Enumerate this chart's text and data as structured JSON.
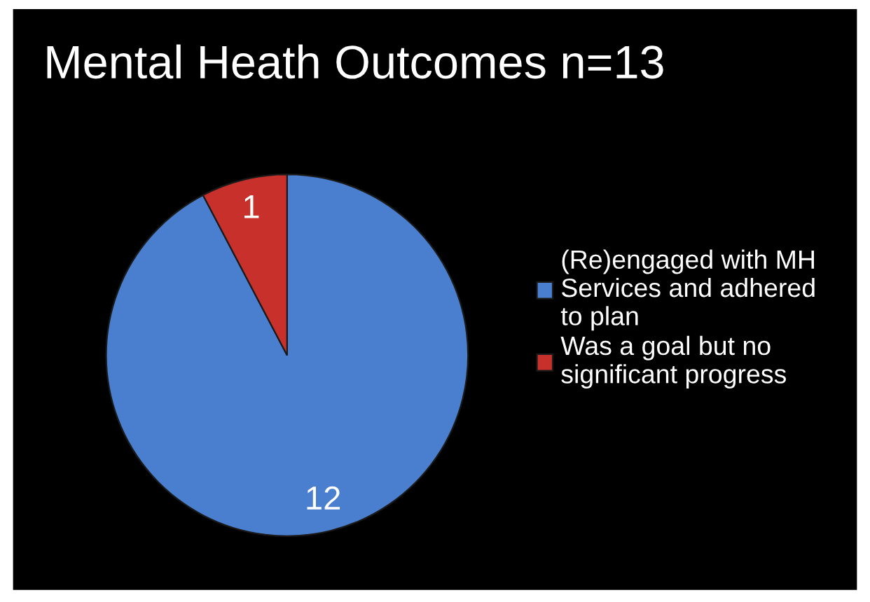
{
  "chart_data": {
    "type": "pie",
    "title": "Mental Heath Outcomes n=13",
    "categories": [
      "(Re)engaged with MH\nServices and adhered\nto plan",
      "Was a goal but no\nsignificant progress"
    ],
    "values": [
      12,
      1
    ],
    "colors": [
      "#4a7fd0",
      "#c8302c"
    ],
    "data_labels": true,
    "legend": "right"
  }
}
